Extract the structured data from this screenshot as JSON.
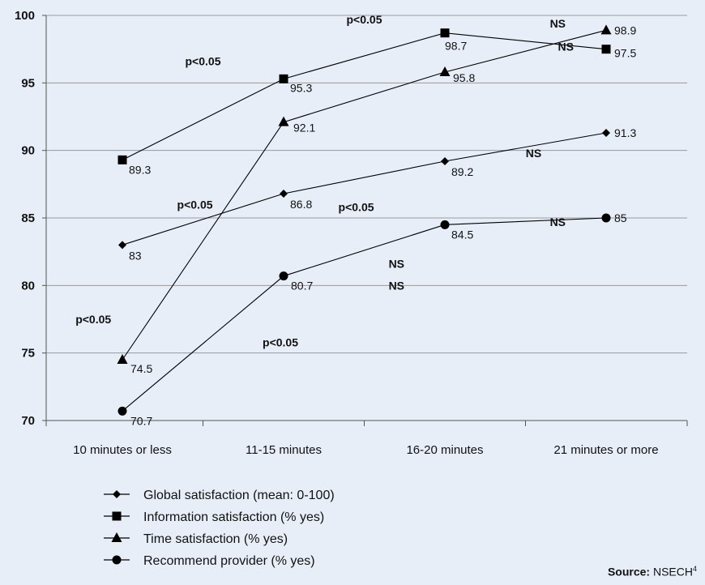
{
  "chart_data": {
    "type": "line",
    "categories": [
      "10 minutes or less",
      "11-15 minutes",
      "16-20 minutes",
      "21 minutes or more"
    ],
    "ylim": [
      70,
      100
    ],
    "yticks": [
      70,
      75,
      80,
      85,
      90,
      95,
      100
    ],
    "grid": true,
    "legend_position": "bottom-left",
    "series": [
      {
        "name": "Global satisfaction (mean: 0-100)",
        "marker": "diamond",
        "values": [
          83,
          86.8,
          89.2,
          91.3
        ],
        "labels": [
          "83",
          "86.8",
          "89.2",
          "91.3"
        ]
      },
      {
        "name": "Information satisfaction (% yes)",
        "marker": "square",
        "values": [
          89.3,
          95.3,
          98.7,
          97.5
        ],
        "labels": [
          "89.3",
          "95.3",
          "98.7",
          "97.5"
        ]
      },
      {
        "name": "Time satisfaction (% yes)",
        "marker": "triangle",
        "values": [
          74.5,
          92.1,
          95.8,
          98.9
        ],
        "labels": [
          "74.5",
          "92.1",
          "95.8",
          "98.9"
        ]
      },
      {
        "name": "Recommend provider (% yes)",
        "marker": "circle",
        "values": [
          70.7,
          80.7,
          84.5,
          85
        ],
        "labels": [
          "70.7",
          "80.7",
          "84.5",
          "85"
        ]
      }
    ],
    "annotations": [
      {
        "text": "p<0.05",
        "x": 0.5,
        "y": 96.6
      },
      {
        "text": "p<0.05",
        "x": 1.5,
        "y": 99.7
      },
      {
        "text": "NS",
        "x": 2.7,
        "y": 99.4
      },
      {
        "text": "NS",
        "x": 2.75,
        "y": 97.7
      },
      {
        "text": "p<0.05",
        "x": 0.45,
        "y": 86.0
      },
      {
        "text": "p<0.05",
        "x": 1.45,
        "y": 85.8
      },
      {
        "text": "NS",
        "x": 2.55,
        "y": 89.8
      },
      {
        "text": "NS",
        "x": 2.7,
        "y": 84.7
      },
      {
        "text": "NS",
        "x": 1.7,
        "y": 81.6
      },
      {
        "text": "NS",
        "x": 1.7,
        "y": 80.0
      },
      {
        "text": "p<0.05",
        "x": -0.18,
        "y": 77.5
      },
      {
        "text": "p<0.05",
        "x": 0.98,
        "y": 75.8
      }
    ]
  },
  "source": {
    "label": "Source:",
    "text": "NSECH",
    "sup": "4"
  }
}
